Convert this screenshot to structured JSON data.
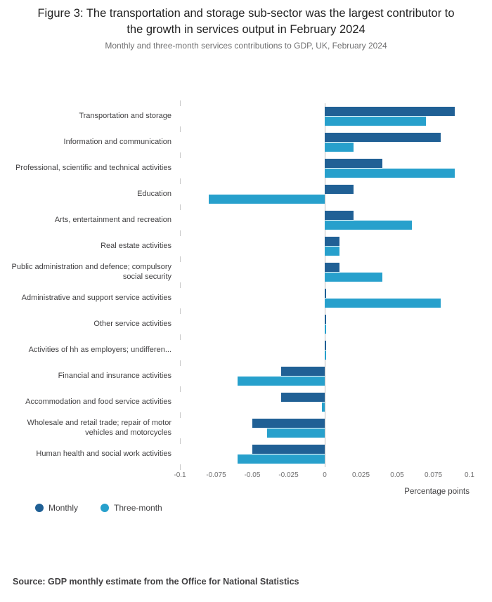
{
  "figure": {
    "title": "Figure 3: The transportation and storage sub-sector was the largest contributor to the growth in services output in February 2024",
    "subtitle": "Monthly and three-month services contributions to GDP, UK, February 2024",
    "source": "Source: GDP monthly estimate from the Office for National Statistics"
  },
  "legend": [
    {
      "label": "Monthly",
      "color": "#206095"
    },
    {
      "label": "Three-month",
      "color": "#27a0cc"
    }
  ],
  "chart_data": {
    "type": "bar",
    "orientation": "horizontal",
    "title": "Figure 3: The transportation and storage sub-sector was the largest contributor to the growth in services output in February 2024",
    "subtitle": "Monthly and three-month services contributions to GDP, UK, February 2024",
    "categories": [
      "Transportation and storage",
      "Information and communication",
      "Professional, scientific and technical activities",
      "Education",
      "Arts, entertainment and recreation",
      "Real estate activities",
      "Public administration and defence; compulsory social security",
      "Administrative and support service activities",
      "Other service activities",
      "Activities of hh as employers; undifferen...",
      "Financial and insurance activities",
      "Accommodation and food service activities",
      "Wholesale and retail trade; repair of motor vehicles and motorcycles",
      "Human health and social work activities"
    ],
    "series": [
      {
        "name": "Monthly",
        "color": "#206095",
        "values": [
          0.09,
          0.08,
          0.04,
          0.02,
          0.02,
          0.01,
          0.01,
          0.001,
          0.001,
          0.001,
          -0.03,
          -0.03,
          -0.05,
          -0.05
        ]
      },
      {
        "name": "Three-month",
        "color": "#27a0cc",
        "values": [
          0.07,
          0.02,
          0.09,
          -0.08,
          0.06,
          0.01,
          0.04,
          0.08,
          0.001,
          0.001,
          -0.06,
          -0.002,
          -0.04,
          -0.06
        ]
      }
    ],
    "xlabel": "Percentage points",
    "xlim": [
      -0.1,
      0.1
    ],
    "xticks": [
      -0.1,
      -0.075,
      -0.05,
      -0.025,
      0,
      0.025,
      0.05,
      0.075,
      0.1
    ],
    "xtick_labels": [
      "-0.1",
      "-0.075",
      "-0.05",
      "-0.025",
      "0",
      "0.025",
      "0.05",
      "0.075",
      "0.1"
    ],
    "grid": false,
    "legend_position": "bottom-left"
  }
}
